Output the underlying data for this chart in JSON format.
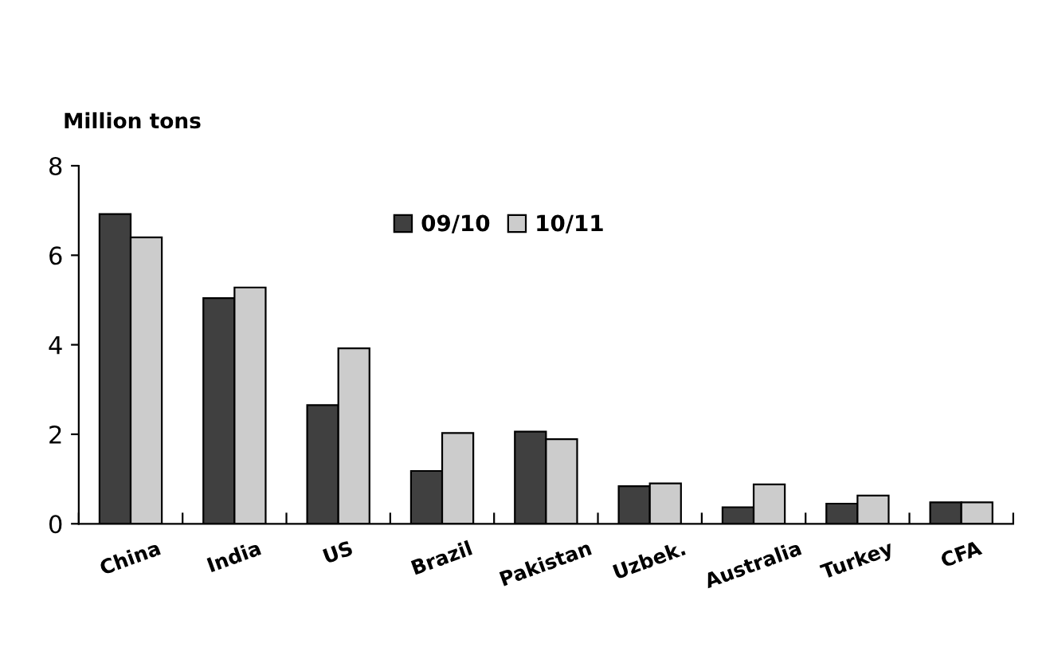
{
  "chart_data": {
    "type": "bar",
    "ylabel": "Million tons",
    "categories": [
      "China",
      "India",
      "US",
      "Brazil",
      "Pakistan",
      "Uzbek.",
      "Australia",
      "Turkey",
      "CFA"
    ],
    "series": [
      {
        "name": "09/10",
        "color": "#404040",
        "values": [
          6.92,
          5.04,
          2.65,
          1.18,
          2.06,
          0.84,
          0.37,
          0.45,
          0.48
        ]
      },
      {
        "name": "10/11",
        "color": "#cccccc",
        "values": [
          6.4,
          5.28,
          3.92,
          2.03,
          1.89,
          0.9,
          0.88,
          0.63,
          0.48
        ]
      }
    ],
    "ylim": [
      0,
      8
    ],
    "yticks": [
      0,
      2,
      4,
      6,
      8
    ],
    "grid": false,
    "legend": "top"
  }
}
